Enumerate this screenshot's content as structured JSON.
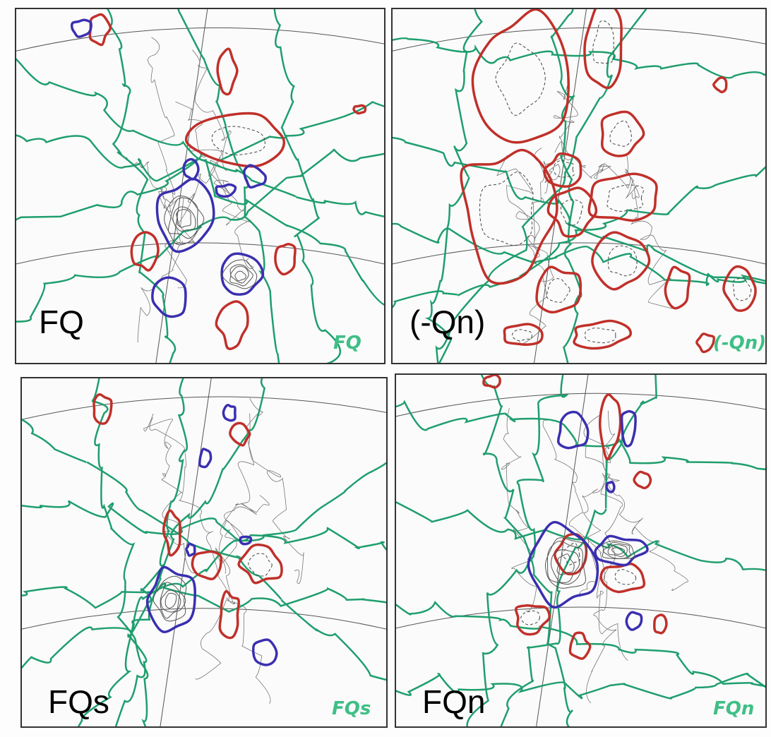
{
  "panels": [
    {
      "label": "FQ",
      "tag": "FQ"
    },
    {
      "label": "(-Qn)",
      "tag": "(-Qn)"
    },
    {
      "label": "FQs",
      "tag": "FQs"
    },
    {
      "label": "FQn",
      "tag": "FQn"
    }
  ]
}
